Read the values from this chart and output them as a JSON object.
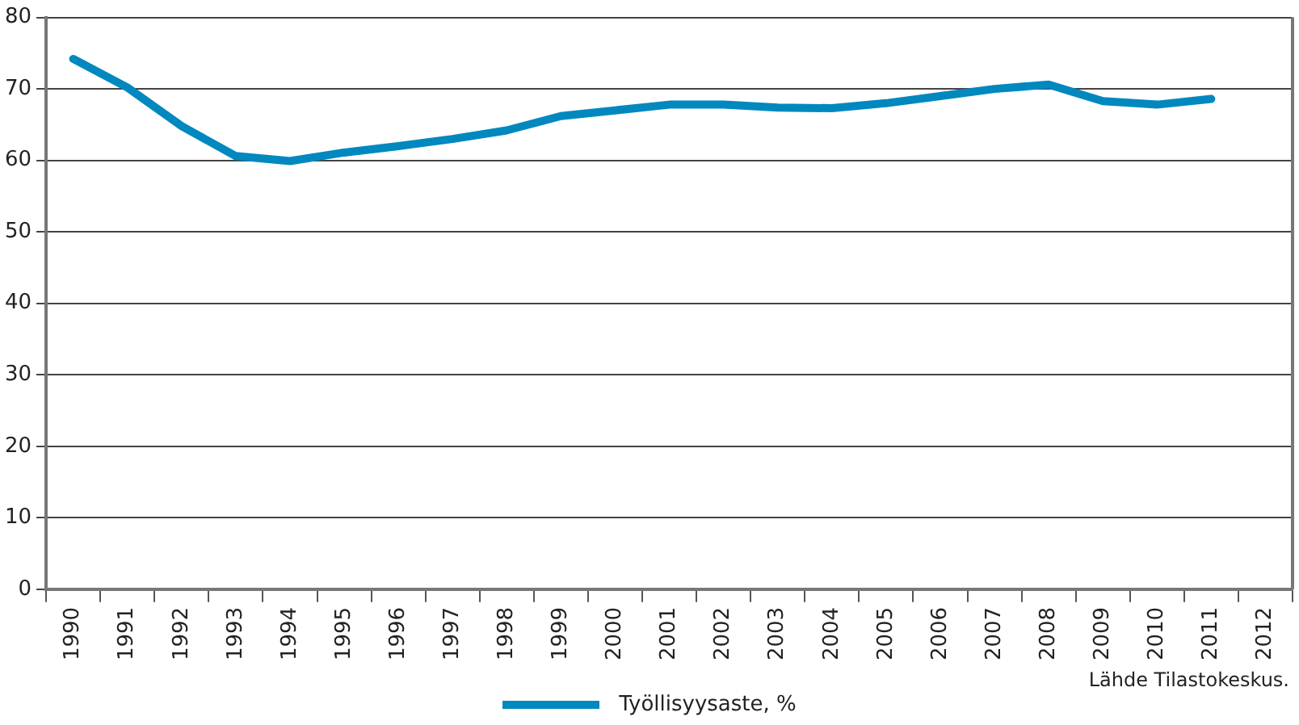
{
  "chart_data": {
    "type": "line",
    "categories": [
      "1990",
      "1991",
      "1992",
      "1993",
      "1994",
      "1995",
      "1996",
      "1997",
      "1998",
      "1999",
      "2000",
      "2001",
      "2002",
      "2003",
      "2004",
      "2005",
      "2006",
      "2007",
      "2008",
      "2009",
      "2010",
      "2011",
      "2012"
    ],
    "series": [
      {
        "name": "Työllisyysaste, %",
        "color": "#0088bf",
        "values": [
          74.2,
          70.2,
          64.8,
          60.6,
          59.9,
          61.1,
          62.0,
          63.0,
          64.2,
          66.2,
          67.0,
          67.8,
          67.8,
          67.4,
          67.3,
          68.0,
          69.0,
          70.0,
          70.6,
          68.3,
          67.8,
          68.6,
          null
        ]
      }
    ],
    "ylim": [
      0,
      80
    ],
    "yticks": [
      0,
      10,
      20,
      30,
      40,
      50,
      60,
      70,
      80
    ],
    "grid": "y",
    "legend": "bottom",
    "marker": "none",
    "line_style": "solid",
    "annotations": [
      "Lähde Tilastokeskus."
    ]
  }
}
